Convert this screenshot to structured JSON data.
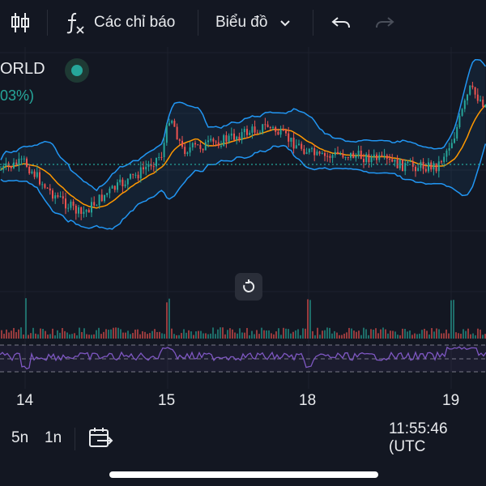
{
  "toolbar": {
    "indicators_label": "Các chỉ báo",
    "chart_type_label": "Biểu đồ",
    "icons": [
      "candles-icon",
      "function-icon",
      "chevron-down-icon",
      "undo-icon",
      "redo-icon"
    ]
  },
  "legend": {
    "symbol": "ORLD",
    "change": "03%)",
    "status_color": "#26a69a"
  },
  "x_axis": {
    "labels": [
      "14",
      "15",
      "18",
      "19"
    ]
  },
  "bottom_bar": {
    "interval_5": "5n",
    "interval_1": "1n",
    "time": "11:55:46 (UTC"
  },
  "colors": {
    "background": "#131722",
    "up": "#26a69a",
    "down": "#ef5350",
    "bollinger": "#2196f3",
    "ma": "#ff9800",
    "rsi": "#7e57c2"
  }
}
